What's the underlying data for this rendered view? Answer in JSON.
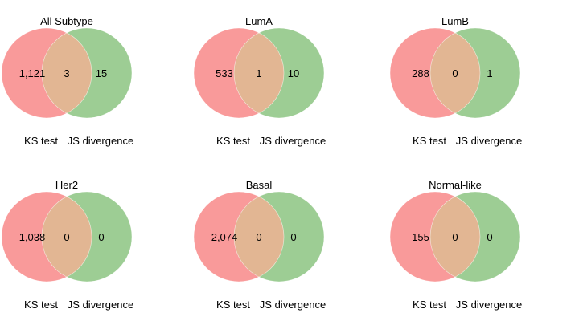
{
  "colors": {
    "set_a": "#f99a9a",
    "set_b": "#9dcd94",
    "overlap": "#e2b693",
    "background": "#ffffff"
  },
  "panels": [
    {
      "title": "All Subtype",
      "left_count": "1,121",
      "overlap_count": "3",
      "right_count": "15",
      "left_label": "KS test",
      "right_label": "JS divergence"
    },
    {
      "title": "LumA",
      "left_count": "533",
      "overlap_count": "1",
      "right_count": "10",
      "left_label": "KS test",
      "right_label": "JS divergence"
    },
    {
      "title": "LumB",
      "left_count": "288",
      "overlap_count": "0",
      "right_count": "1",
      "left_label": "KS test",
      "right_label": "JS divergence"
    },
    {
      "title": "Her2",
      "left_count": "1,038",
      "overlap_count": "0",
      "right_count": "0",
      "left_label": "KS test",
      "right_label": "JS divergence"
    },
    {
      "title": "Basal",
      "left_count": "2,074",
      "overlap_count": "0",
      "right_count": "0",
      "left_label": "KS test",
      "right_label": "JS divergence"
    },
    {
      "title": "Normal-like",
      "left_count": "155",
      "overlap_count": "0",
      "right_count": "0",
      "left_label": "KS test",
      "right_label": "JS divergence"
    }
  ]
}
